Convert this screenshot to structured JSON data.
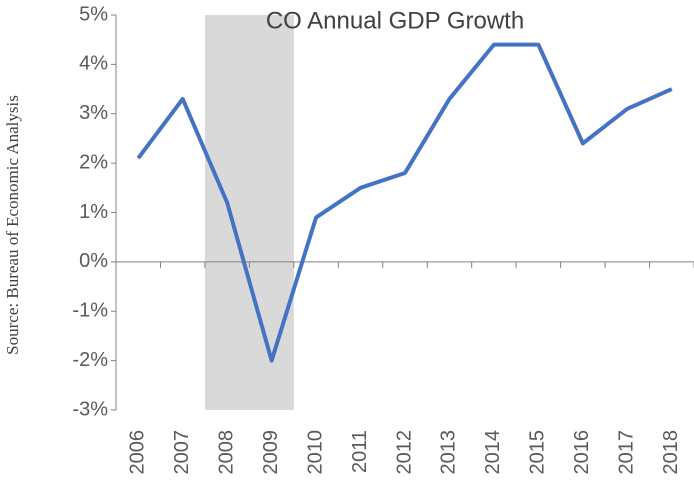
{
  "chart_data": {
    "type": "line",
    "title": "CO Annual GDP Growth",
    "y_axis_label": "Source: Bureau of Economic Analysis",
    "categories": [
      "2006",
      "2007",
      "2008",
      "2009",
      "2010",
      "2011",
      "2012",
      "2013",
      "2014",
      "2015",
      "2016",
      "2017",
      "2018"
    ],
    "series": [
      {
        "name": "CO Annual GDP Growth",
        "color": "#4472c4",
        "values": [
          2.1,
          3.3,
          1.2,
          -2.0,
          0.9,
          1.5,
          1.8,
          3.3,
          4.4,
          4.4,
          2.4,
          3.1,
          3.5
        ]
      }
    ],
    "ylim": [
      -3,
      5
    ],
    "yticks": [
      {
        "value": -3,
        "label": "-3%"
      },
      {
        "value": -2,
        "label": "-2%"
      },
      {
        "value": -1,
        "label": "-1%"
      },
      {
        "value": 0,
        "label": "0%"
      },
      {
        "value": 1,
        "label": "1%"
      },
      {
        "value": 2,
        "label": "2%"
      },
      {
        "value": 3,
        "label": "3%"
      },
      {
        "value": 4,
        "label": "4%"
      },
      {
        "value": 5,
        "label": "5%"
      }
    ],
    "shade": {
      "from": "2008",
      "to": "2009",
      "color": "#d9d9d9"
    },
    "grid": false
  }
}
